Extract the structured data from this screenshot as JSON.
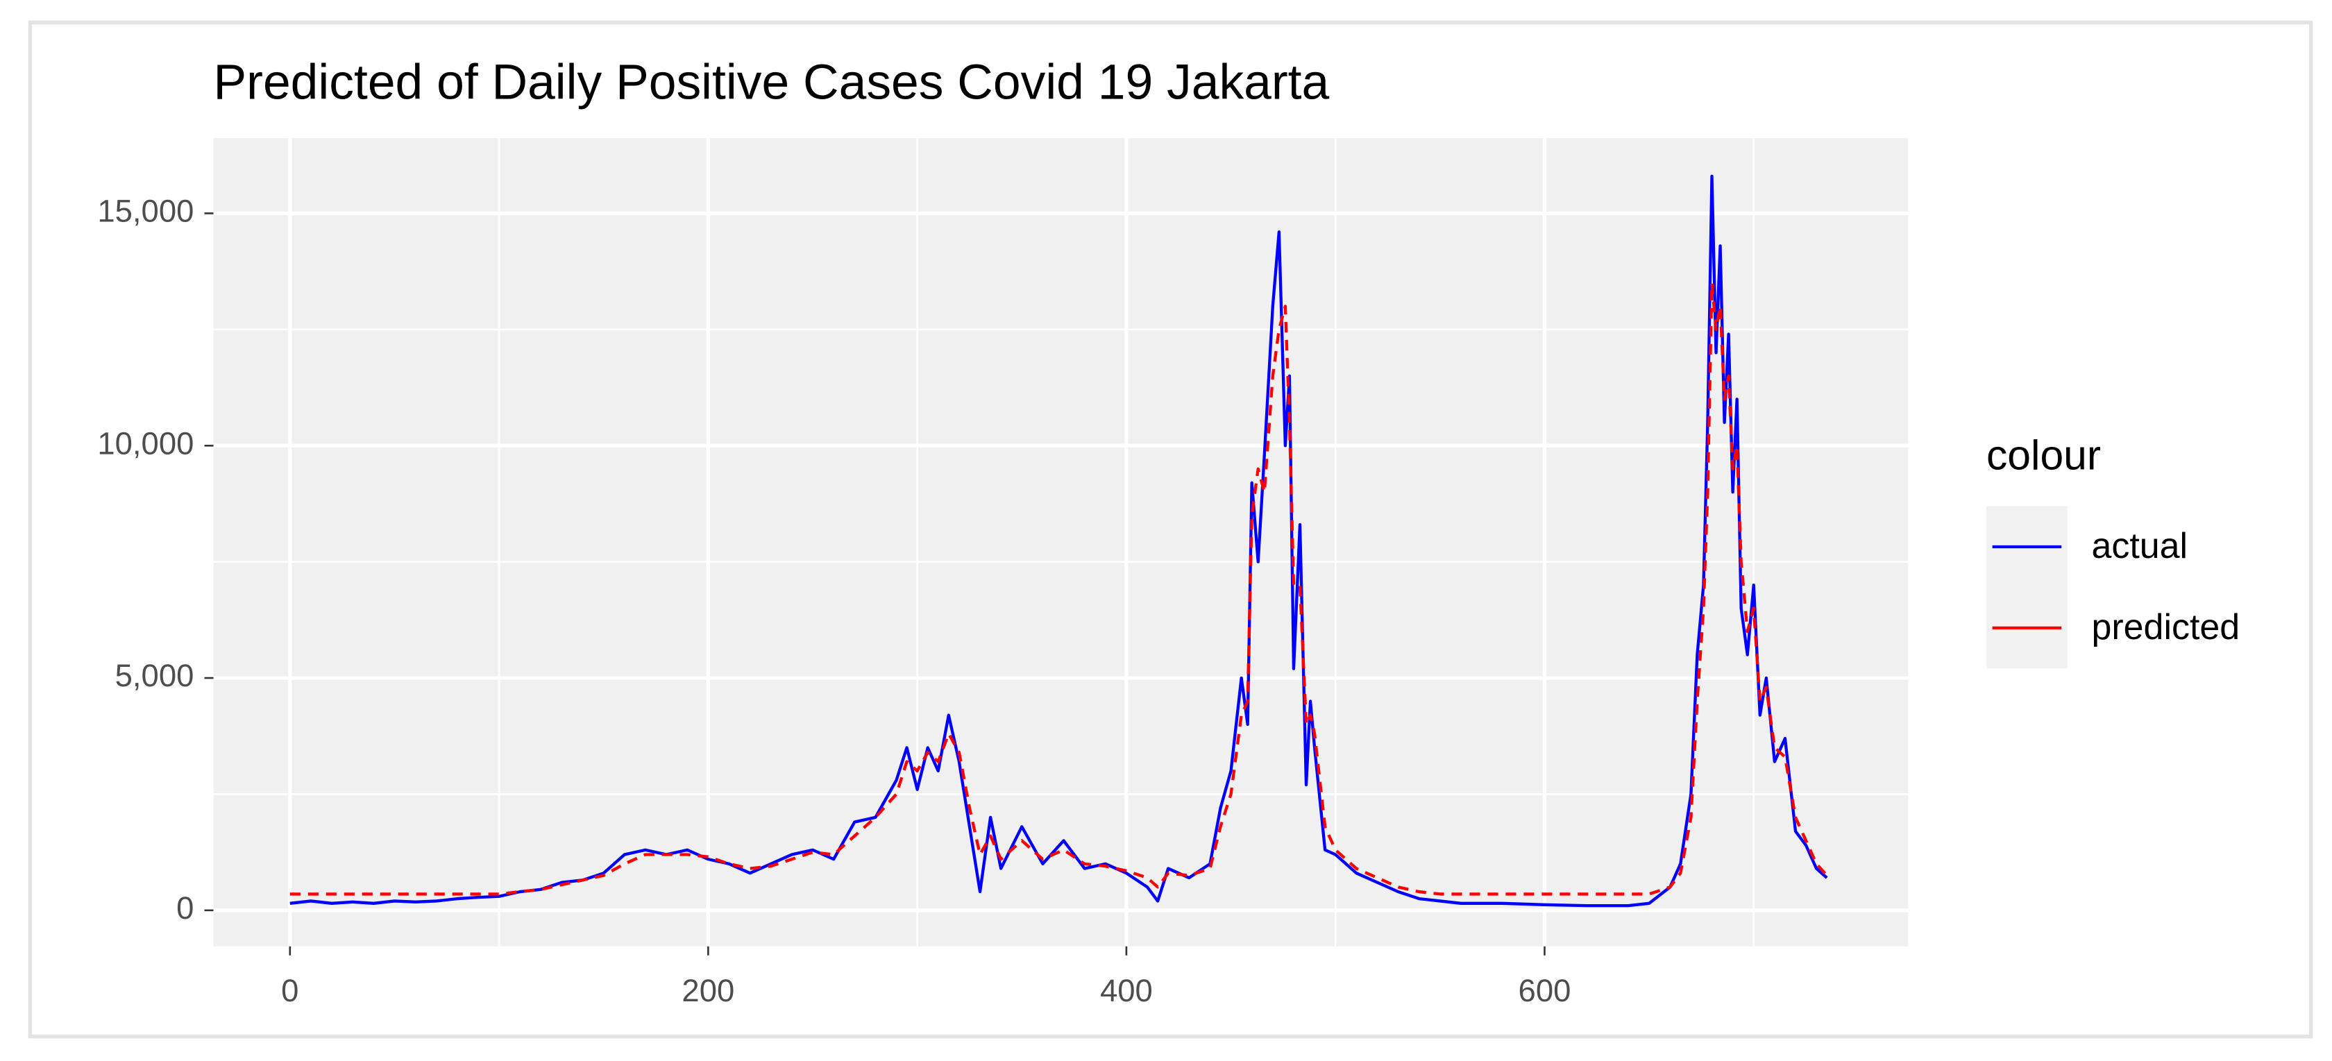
{
  "chart_data": {
    "type": "line",
    "title": "Predicted of Daily Positive Cases Covid 19 Jakarta",
    "legend_title": "colour",
    "legend_position": "right",
    "grid": true,
    "xlim": [
      -36.6,
      773.9
    ],
    "ylim": [
      -776,
      16617
    ],
    "xticks": [
      0,
      200,
      400,
      600
    ],
    "xminor": [
      100,
      300,
      500,
      700
    ],
    "yticks": [
      0,
      {
        "value": 5000,
        "label": "5,000"
      },
      {
        "value": 10000,
        "label": "10,000"
      },
      {
        "value": 15000,
        "label": "15,000"
      }
    ],
    "yminor": [
      2500,
      7500,
      12500
    ],
    "x": [
      0,
      10,
      20,
      30,
      40,
      50,
      60,
      70,
      80,
      90,
      100,
      110,
      120,
      130,
      140,
      150,
      160,
      170,
      180,
      190,
      200,
      210,
      220,
      230,
      240,
      250,
      260,
      270,
      280,
      290,
      295,
      300,
      305,
      310,
      315,
      320,
      325,
      330,
      335,
      340,
      350,
      360,
      370,
      380,
      390,
      400,
      410,
      415,
      420,
      430,
      440,
      445,
      450,
      455,
      458,
      460,
      463,
      466,
      470,
      473,
      476,
      478,
      480,
      483,
      486,
      488,
      490,
      495,
      500,
      510,
      520,
      530,
      540,
      550,
      560,
      580,
      600,
      620,
      640,
      650,
      660,
      665,
      670,
      673,
      676,
      678,
      680,
      682,
      684,
      686,
      688,
      690,
      692,
      694,
      697,
      700,
      703,
      706,
      710,
      715,
      720,
      725,
      730,
      735
    ],
    "series": [
      {
        "name": "actual",
        "color": "#0000ff",
        "dash": false,
        "values": [
          150,
          200,
          150,
          180,
          150,
          200,
          180,
          200,
          250,
          280,
          300,
          400,
          450,
          600,
          650,
          800,
          1200,
          1300,
          1200,
          1300,
          1100,
          1000,
          800,
          1000,
          1200,
          1300,
          1100,
          1900,
          2000,
          2800,
          3500,
          2600,
          3500,
          3000,
          4200,
          3200,
          1800,
          400,
          2000,
          900,
          1800,
          1000,
          1500,
          900,
          1000,
          800,
          500,
          200,
          900,
          700,
          1000,
          2200,
          3000,
          5000,
          4000,
          9200,
          7500,
          9800,
          13000,
          14600,
          10000,
          11500,
          5200,
          8300,
          2700,
          4500,
          3500,
          1300,
          1200,
          800,
          600,
          400,
          250,
          200,
          150,
          150,
          120,
          100,
          100,
          150,
          500,
          1000,
          2500,
          5500,
          7000,
          10500,
          15800,
          12000,
          14300,
          10500,
          12400,
          9000,
          11000,
          6500,
          5500,
          7000,
          4200,
          5000,
          3200,
          3700,
          1700,
          1400,
          900,
          700
        ]
      },
      {
        "name": "predicted",
        "color": "#ff0000",
        "dash": true,
        "values": [
          350,
          350,
          350,
          350,
          350,
          350,
          350,
          350,
          350,
          350,
          350,
          400,
          450,
          550,
          650,
          750,
          1000,
          1200,
          1200,
          1200,
          1150,
          1000,
          900,
          950,
          1100,
          1250,
          1200,
          1600,
          2000,
          2500,
          3200,
          3000,
          3400,
          3200,
          3800,
          3400,
          2200,
          1200,
          1600,
          1100,
          1500,
          1100,
          1300,
          1000,
          950,
          850,
          700,
          500,
          800,
          750,
          900,
          1800,
          2500,
          4200,
          4500,
          8500,
          9500,
          9000,
          11500,
          12500,
          13000,
          10500,
          7000,
          7000,
          4000,
          4200,
          3800,
          1800,
          1300,
          900,
          700,
          500,
          400,
          350,
          350,
          350,
          350,
          350,
          350,
          350,
          500,
          800,
          2000,
          4500,
          6500,
          9000,
          13500,
          12500,
          13000,
          11000,
          11500,
          9500,
          10000,
          7500,
          6000,
          6500,
          4500,
          4800,
          3500,
          3300,
          2000,
          1500,
          1000,
          750
        ]
      }
    ]
  }
}
